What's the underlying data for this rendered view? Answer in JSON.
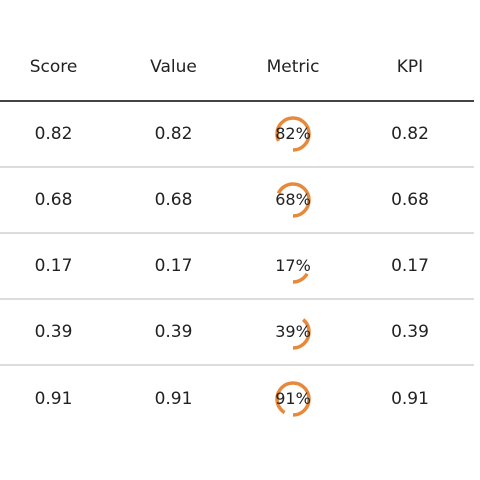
{
  "table": {
    "columns": [
      "Score",
      "Value",
      "Metric",
      "KPI"
    ],
    "rows": [
      {
        "score": "0.82",
        "value": "0.82",
        "metric_label": "82%",
        "metric_fraction": 0.82,
        "kpi": "0.82"
      },
      {
        "score": "0.68",
        "value": "0.68",
        "metric_label": "68%",
        "metric_fraction": 0.68,
        "kpi": "0.68"
      },
      {
        "score": "0.17",
        "value": "0.17",
        "metric_label": "17%",
        "metric_fraction": 0.17,
        "kpi": "0.17"
      },
      {
        "score": "0.39",
        "value": "0.39",
        "metric_label": "39%",
        "metric_fraction": 0.39,
        "kpi": "0.39"
      },
      {
        "score": "0.91",
        "value": "0.91",
        "metric_label": "91%",
        "metric_fraction": 0.91,
        "kpi": "0.91"
      }
    ]
  },
  "colors": {
    "ring": "#e8883a",
    "header_rule": "#444444",
    "row_rule": "#dcdcdc"
  }
}
